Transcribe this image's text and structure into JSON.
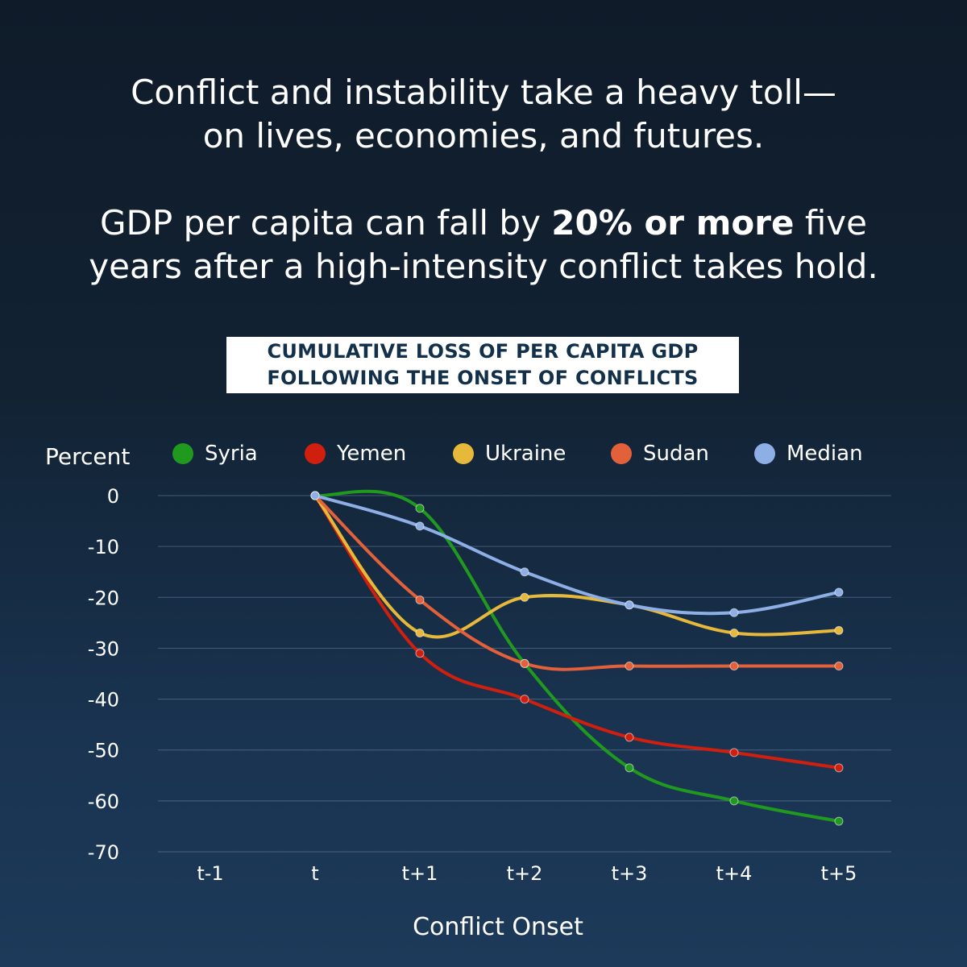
{
  "headline": {
    "line1": "Conflict and instability take a heavy toll—",
    "line2": "on lives, economies, and futures.",
    "line3_pre": "GDP per capita can fall by ",
    "line3_bold": "20% or more",
    "line3_post": " five",
    "line4": "years after a high-intensity conflict takes hold."
  },
  "chart_data": {
    "type": "line",
    "title": "CUMULATIVE LOSS OF PER CAPITA GDP FOLLOWING THE ONSET OF CONFLICTS",
    "title_line1": "CUMULATIVE LOSS OF PER CAPITA GDP",
    "title_line2": "FOLLOWING THE ONSET OF CONFLICTS",
    "ylabel": "Percent",
    "xlabel": "Conflict Onset",
    "ylim": [
      -70,
      0
    ],
    "yticks": [
      0,
      -10,
      -20,
      -30,
      -40,
      -50,
      -60,
      -70
    ],
    "categories": [
      "t-1",
      "t",
      "t+1",
      "t+2",
      "t+3",
      "t+4",
      "t+5"
    ],
    "series": [
      {
        "name": "Syria",
        "color": "#1f9a1f",
        "values": [
          null,
          0,
          -2.5,
          -33,
          -53.5,
          -60,
          -64
        ]
      },
      {
        "name": "Yemen",
        "color": "#d01f0e",
        "values": [
          null,
          0,
          -31,
          -40,
          -47.5,
          -50.5,
          -53.5
        ]
      },
      {
        "name": "Ukraine",
        "color": "#e6b93a",
        "values": [
          null,
          0,
          -27,
          -20,
          -21.5,
          -27,
          -26.5
        ]
      },
      {
        "name": "Sudan",
        "color": "#e2603a",
        "values": [
          null,
          0,
          -20.5,
          -33,
          -33.5,
          -33.5,
          -33.5
        ]
      },
      {
        "name": "Median",
        "color": "#8eaee6",
        "values": [
          null,
          0,
          -6,
          -15,
          -21.5,
          -23,
          -19
        ]
      }
    ]
  }
}
